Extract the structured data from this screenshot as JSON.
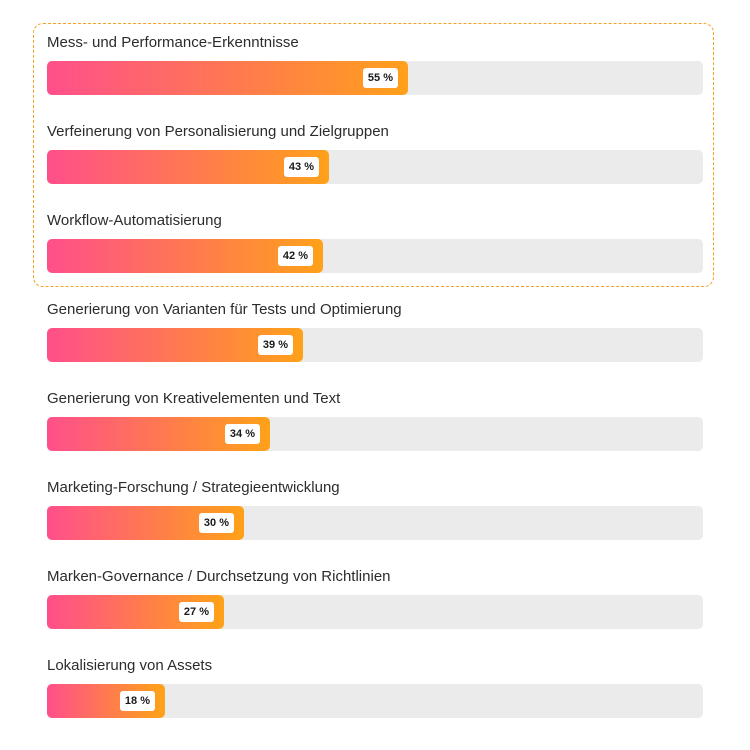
{
  "colors": {
    "bar_start": "#ff4f8b",
    "bar_end": "#ff9f1c",
    "bar_edge": "#ffa21a",
    "track": "#ebebeb",
    "highlight_border": "#f5a01e"
  },
  "chart_data": {
    "type": "bar",
    "orientation": "horizontal",
    "xlim": [
      0,
      100
    ],
    "grid": false,
    "highlighted_count": 3,
    "categories": [
      "Mess- und Performance-Erkenntnisse",
      "Verfeinerung von Personalisierung und Zielgruppen",
      "Workflow-Automatisierung",
      "Generierung von Varianten für Tests und Optimierung",
      "Generierung von Kreativelementen und Text",
      "Marketing-Forschung / Strategieentwicklung",
      "Marken-Governance / Durchsetzung von Richtlinien",
      "Lokalisierung von Assets"
    ],
    "values": [
      55,
      43,
      42,
      39,
      34,
      30,
      27,
      18
    ],
    "value_labels": [
      "55 %",
      "43 %",
      "42 %",
      "39 %",
      "34 %",
      "30 %",
      "27 %",
      "18 %"
    ]
  }
}
